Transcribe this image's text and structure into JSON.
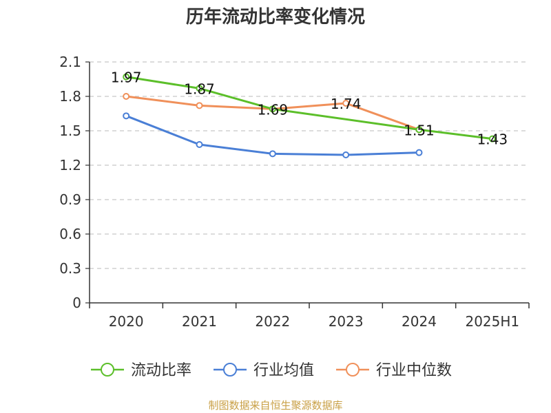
{
  "chart_data": {
    "type": "line",
    "title": "历年流动比率变化情况",
    "categories": [
      "2020",
      "2021",
      "2022",
      "2023",
      "2024",
      "2025H1"
    ],
    "ylim": [
      0,
      2.1
    ],
    "yticks": [
      "0",
      "0.3",
      "0.6",
      "0.9",
      "1.2",
      "1.5",
      "1.8",
      "2.1"
    ],
    "grid": true,
    "legend_position": "bottom",
    "series": [
      {
        "name": "流动比率",
        "color": "#5cbf2a",
        "values": [
          1.97,
          1.87,
          1.69,
          null,
          1.51,
          1.43
        ],
        "labels": [
          "1.97",
          "1.87",
          "1.69",
          "",
          "1.51",
          "1.43"
        ]
      },
      {
        "name": "行业均值",
        "color": "#4a7fd6",
        "values": [
          1.63,
          1.38,
          1.3,
          1.29,
          1.31,
          null
        ],
        "labels": []
      },
      {
        "name": "行业中位数",
        "color": "#f0905a",
        "values": [
          1.8,
          1.72,
          1.69,
          1.74,
          1.51,
          null
        ],
        "labels": [
          "",
          "",
          "",
          "1.74",
          "",
          ""
        ]
      }
    ]
  },
  "source_text": "制图数据来自恒生聚源数据库"
}
